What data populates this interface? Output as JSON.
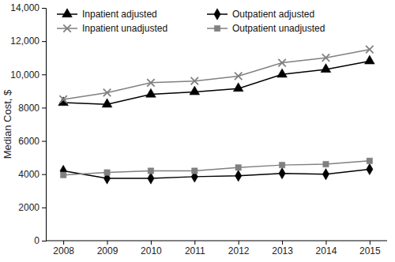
{
  "chart_data": {
    "type": "line",
    "y_label": "Median Cost, $",
    "categories": [
      "2008",
      "2009",
      "2010",
      "2011",
      "2012",
      "2013",
      "2014",
      "2015"
    ],
    "series": [
      {
        "name": "Inpatient adjusted",
        "color": "#000000",
        "marker": "triangle",
        "values": [
          8300,
          8200,
          8800,
          8950,
          9150,
          10000,
          10300,
          10800
        ]
      },
      {
        "name": "Outpatient adjusted",
        "color": "#000000",
        "marker": "diamond",
        "values": [
          4200,
          3750,
          3750,
          3850,
          3900,
          4050,
          4000,
          4300
        ]
      },
      {
        "name": "Inpatient unadjusted",
        "color": "#808080",
        "marker": "x",
        "values": [
          8500,
          8900,
          9500,
          9600,
          9900,
          10700,
          11000,
          11500
        ]
      },
      {
        "name": "Outpatient unadjusted",
        "color": "#808080",
        "marker": "square",
        "values": [
          3950,
          4100,
          4200,
          4200,
          4400,
          4550,
          4600,
          4800
        ]
      }
    ],
    "ylim": [
      0,
      14000
    ],
    "yticks": [
      0,
      2000,
      4000,
      6000,
      8000,
      {
        "value": 10000,
        "label": "10,000"
      },
      {
        "value": 12000,
        "label": "12,000"
      },
      {
        "value": 14000,
        "label": "14,000"
      }
    ],
    "grid": false,
    "legend": "upper left"
  }
}
